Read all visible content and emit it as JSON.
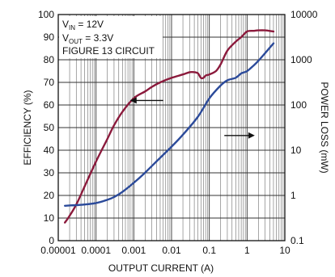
{
  "chart_data": {
    "type": "line",
    "xlabel": "OUTPUT CURRENT (A)",
    "ylabel_left": "EFFICIENCY (%)",
    "ylabel_right": "POWER LOSS (mW)",
    "x_scale": "log",
    "xlim": [
      1e-05,
      10
    ],
    "ylim_left": [
      0,
      100
    ],
    "ylim_right": [
      0.1,
      10000
    ],
    "y_right_scale": "log",
    "grid": true,
    "x_tick_labels": [
      "0.00001",
      "0.0001",
      "0.001",
      "0.01",
      "0.1",
      "1",
      "10"
    ],
    "y_left_tick_labels": [
      "0",
      "10",
      "20",
      "30",
      "40",
      "50",
      "60",
      "70",
      "80",
      "90",
      "100"
    ],
    "y_right_tick_labels": [
      "0.1",
      "1",
      "10",
      "100",
      "1000",
      "10000"
    ],
    "annotations": {
      "vin": "V",
      "vin_sub": "IN",
      "vin_rest": " = 12V",
      "vout": "V",
      "vout_sub": "OUT",
      "vout_rest": " = 3.3V",
      "figure": "FIGURE 13 CIRCUIT"
    },
    "series": [
      {
        "key": "efficiency",
        "axis": "left",
        "color": "#8b1a3c",
        "x": [
          1.5e-05,
          2e-05,
          3e-05,
          5e-05,
          0.0001,
          0.0002,
          0.0003,
          0.0005,
          0.001,
          0.002,
          0.003,
          0.005,
          0.01,
          0.02,
          0.03,
          0.04,
          0.05,
          0.06,
          0.07,
          0.08,
          0.1,
          0.15,
          0.2,
          0.3,
          0.5,
          0.7,
          1,
          1.5,
          2,
          3,
          5
        ],
        "y": [
          8,
          11,
          16,
          24,
          35,
          45,
          51,
          57,
          63,
          66,
          68,
          70,
          72,
          73.5,
          74.5,
          74.5,
          74,
          72,
          72,
          73,
          73.5,
          75,
          78,
          84,
          88,
          90,
          92.5,
          92.8,
          93,
          93,
          92.5
        ]
      },
      {
        "key": "power_loss",
        "axis": "right",
        "color": "#2b4a9a",
        "x": [
          1.5e-05,
          2e-05,
          3e-05,
          5e-05,
          0.0001,
          0.0002,
          0.0003,
          0.0005,
          0.001,
          0.002,
          0.005,
          0.01,
          0.02,
          0.05,
          0.1,
          0.2,
          0.3,
          0.5,
          0.7,
          1,
          1.5,
          2,
          3,
          5
        ],
        "y": [
          0.59,
          0.6,
          0.61,
          0.63,
          0.68,
          0.8,
          0.92,
          1.2,
          1.9,
          3.2,
          6.8,
          12,
          22,
          55,
          140,
          270,
          350,
          400,
          500,
          560,
          750,
          950,
          1400,
          2300
        ]
      }
    ]
  }
}
